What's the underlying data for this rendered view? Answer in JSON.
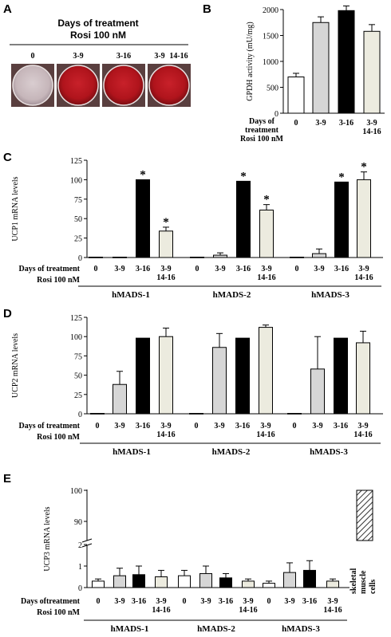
{
  "panel_a": {
    "letter": "A",
    "header_line1": "Days of treatment",
    "header_line2": "Rosi 100 nM",
    "wells": [
      {
        "label": "0",
        "stain": "low"
      },
      {
        "label": "3-9",
        "stain": "high"
      },
      {
        "label": "3-16",
        "stain": "high"
      },
      {
        "label": "3-9 14-16",
        "stain": "high"
      }
    ],
    "colors": {
      "unstained": "#ccbdc0",
      "stained": "#b5141c"
    }
  },
  "chart_data": [
    {
      "id": "B",
      "type": "bar",
      "title": "",
      "ylabel": "GPDH activity (mU/mg)",
      "ylim": [
        0,
        2000
      ],
      "yticks": [
        "0",
        "500",
        "1000",
        "1500",
        "2000"
      ],
      "row_label": [
        "Days of",
        "treatment",
        "Rosi 100 nM"
      ],
      "categories": [
        [
          "0"
        ],
        [
          "3-9"
        ],
        [
          "3-16"
        ],
        [
          "3-9",
          "14-16"
        ]
      ],
      "series": [
        {
          "values": [
            700,
            1750,
            1980,
            1580
          ],
          "errors": [
            70,
            110,
            90,
            130
          ]
        }
      ],
      "fills": [
        "#ffffff",
        "#d6d6d6",
        "#000000",
        "#ecebdf"
      ]
    },
    {
      "id": "C",
      "type": "bar",
      "title": "",
      "ylabel": "UCP1 mRNA levels",
      "ylim": [
        0,
        125
      ],
      "yticks": [
        "0",
        "25",
        "50",
        "75",
        "100",
        "125"
      ],
      "row_label": [
        "Days of  treatment",
        "Rosi 100 nM"
      ],
      "categories": [
        [
          "0"
        ],
        [
          "3-9"
        ],
        [
          "3-16"
        ],
        [
          "3-9",
          "14-16"
        ]
      ],
      "groups": [
        {
          "name": "hMADS-1",
          "values": [
            0.5,
            0.5,
            100,
            34
          ],
          "errors": [
            0,
            0,
            0,
            5
          ],
          "stars": [
            false,
            false,
            true,
            true
          ]
        },
        {
          "name": "hMADS-2",
          "values": [
            0.5,
            3,
            98,
            61
          ],
          "errors": [
            0,
            3,
            0,
            7
          ],
          "stars": [
            false,
            false,
            true,
            true
          ]
        },
        {
          "name": "hMADS-3",
          "values": [
            0.5,
            5,
            97,
            100
          ],
          "errors": [
            0,
            6,
            0,
            10
          ],
          "stars": [
            false,
            false,
            true,
            true
          ]
        }
      ],
      "star_text": "*",
      "fills": [
        "#ffffff",
        "#d6d6d6",
        "#000000",
        "#ecebdf"
      ]
    },
    {
      "id": "D",
      "type": "bar",
      "title": "",
      "ylabel": "UCP2 mRNA levels",
      "ylim": [
        0,
        125
      ],
      "yticks": [
        "0",
        "25",
        "50",
        "75",
        "100",
        "125"
      ],
      "row_label": [
        "Days of treatment",
        "Rosi 100 nM"
      ],
      "categories": [
        [
          "0"
        ],
        [
          "3-9"
        ],
        [
          "3-16"
        ],
        [
          "3-9",
          "14-16"
        ]
      ],
      "groups": [
        {
          "name": "hMADS-1",
          "values": [
            0.5,
            38,
            98,
            100
          ],
          "errors": [
            0,
            17,
            0,
            11
          ]
        },
        {
          "name": "hMADS-2",
          "values": [
            0.5,
            86,
            98,
            112
          ],
          "errors": [
            0,
            18,
            0,
            3
          ]
        },
        {
          "name": "hMADS-3",
          "values": [
            0.5,
            58,
            98,
            92
          ],
          "errors": [
            0,
            42,
            0,
            15
          ]
        }
      ],
      "fills": [
        "#ffffff",
        "#d6d6d6",
        "#000000",
        "#ecebdf"
      ]
    },
    {
      "id": "E",
      "type": "bar",
      "title": "",
      "ylabel": "UCP3 mRNA levels",
      "axis_break": true,
      "yticks": [
        "0",
        "1",
        "2",
        "90",
        "100"
      ],
      "row_label": [
        "Days oftreatment",
        "Rosi 100 nM"
      ],
      "categories": [
        [
          "0"
        ],
        [
          "3-9"
        ],
        [
          "3-16"
        ],
        [
          "3-9",
          "14-16"
        ]
      ],
      "groups": [
        {
          "name": "hMADS-1",
          "values": [
            0.3,
            0.55,
            0.6,
            0.5
          ],
          "errors": [
            0.1,
            0.35,
            0.4,
            0.3
          ]
        },
        {
          "name": "hMADS-2",
          "values": [
            0.55,
            0.65,
            0.45,
            0.3
          ],
          "errors": [
            0.25,
            0.35,
            0.2,
            0.1
          ]
        },
        {
          "name": "hMADS-3",
          "values": [
            0.2,
            0.7,
            0.8,
            0.3
          ],
          "errors": [
            0.1,
            0.45,
            0.45,
            0.1
          ]
        }
      ],
      "extra_bar": {
        "label": "skeletal muscle cells",
        "label_lines": [
          "skeletal",
          "muscle",
          "cells"
        ],
        "value": 100,
        "pattern": "hatched"
      },
      "fills": [
        "#ffffff",
        "#d6d6d6",
        "#000000",
        "#ecebdf"
      ]
    }
  ]
}
